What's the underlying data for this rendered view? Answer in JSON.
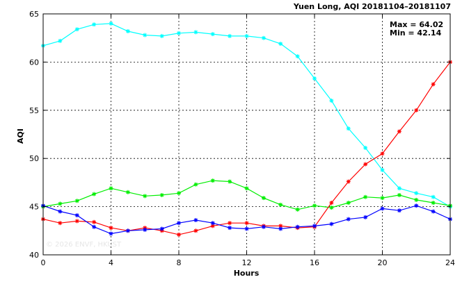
{
  "chart_data": {
    "type": "line",
    "title": "Yuen Long, AQI 20181104–20181107",
    "xlabel": "Hours",
    "ylabel": "AQI",
    "xlim": [
      0,
      24
    ],
    "ylim": [
      40,
      65
    ],
    "xticks": [
      0,
      4,
      8,
      12,
      16,
      20,
      24
    ],
    "yticks": [
      40,
      45,
      50,
      55,
      60,
      65
    ],
    "grid": true,
    "stats": [
      "Max = 64.02",
      "Min = 42.14"
    ],
    "watermark": "© 2026  ENVF, HKUST",
    "x": [
      0,
      1,
      2,
      3,
      4,
      5,
      6,
      7,
      8,
      9,
      10,
      11,
      12,
      13,
      14,
      15,
      16,
      17,
      18,
      19,
      20,
      21,
      22,
      23,
      24
    ],
    "series": [
      {
        "color": "#00ffff",
        "values": [
          61.7,
          62.2,
          63.4,
          63.9,
          64.0,
          63.2,
          62.8,
          62.7,
          63.0,
          63.1,
          62.9,
          62.7,
          62.7,
          62.5,
          61.9,
          60.6,
          58.3,
          56.0,
          53.1,
          51.1,
          48.8,
          46.9,
          46.4,
          46.0,
          45.0
        ]
      },
      {
        "color": "#00ee00",
        "values": [
          45.0,
          45.3,
          45.6,
          46.3,
          46.9,
          46.5,
          46.1,
          46.2,
          46.4,
          47.3,
          47.7,
          47.6,
          46.9,
          45.9,
          45.2,
          44.7,
          45.1,
          44.9,
          45.4,
          46.0,
          45.9,
          46.2,
          45.7,
          45.4,
          45.1
        ]
      },
      {
        "color": "#ff0000",
        "values": [
          43.7,
          43.3,
          43.5,
          43.4,
          42.8,
          42.5,
          42.8,
          42.5,
          42.1,
          42.5,
          43.0,
          43.3,
          43.3,
          43.0,
          43.0,
          42.8,
          42.9,
          45.4,
          47.6,
          49.4,
          50.5,
          52.8,
          55.0,
          57.7,
          60.0
        ]
      },
      {
        "color": "#0000ff",
        "values": [
          45.1,
          44.5,
          44.1,
          42.9,
          42.2,
          42.5,
          42.6,
          42.7,
          43.3,
          43.6,
          43.3,
          42.8,
          42.7,
          42.9,
          42.7,
          42.9,
          43.0,
          43.2,
          43.7,
          43.9,
          44.8,
          44.6,
          45.1,
          44.5,
          43.7
        ]
      }
    ]
  }
}
